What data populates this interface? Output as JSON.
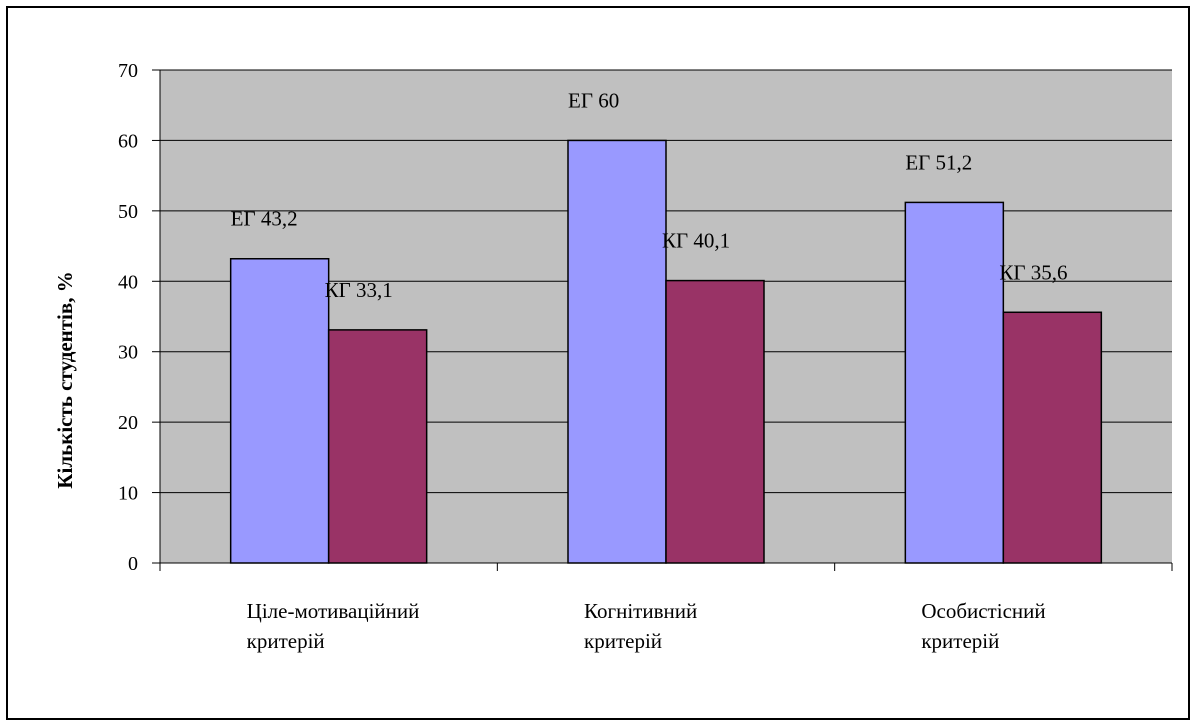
{
  "chart_data": {
    "type": "bar",
    "categories": [
      [
        "Ціле-мотиваційний",
        " критерій"
      ],
      [
        "Когнітивний",
        "критерій"
      ],
      [
        "Особистісний",
        "критерій"
      ]
    ],
    "series": [
      {
        "values": [
          43.2,
          60,
          51.2
        ],
        "labels": [
          "ЕГ 43,2",
          "ЕГ 60",
          "ЕГ 51,2"
        ],
        "color": "#9999ff"
      },
      {
        "values": [
          33.1,
          40.1,
          35.6
        ],
        "labels": [
          "КГ 33,1",
          "КГ 40,1",
          "КГ 35,6"
        ],
        "color": "#993366"
      }
    ],
    "ylabel": "Кількість студентів, %",
    "ylim": [
      0,
      70
    ],
    "yticks": [
      0,
      10,
      20,
      30,
      40,
      50,
      60,
      70
    ],
    "grid": true,
    "plot_background": "#c0c0c0",
    "legend": "none"
  }
}
